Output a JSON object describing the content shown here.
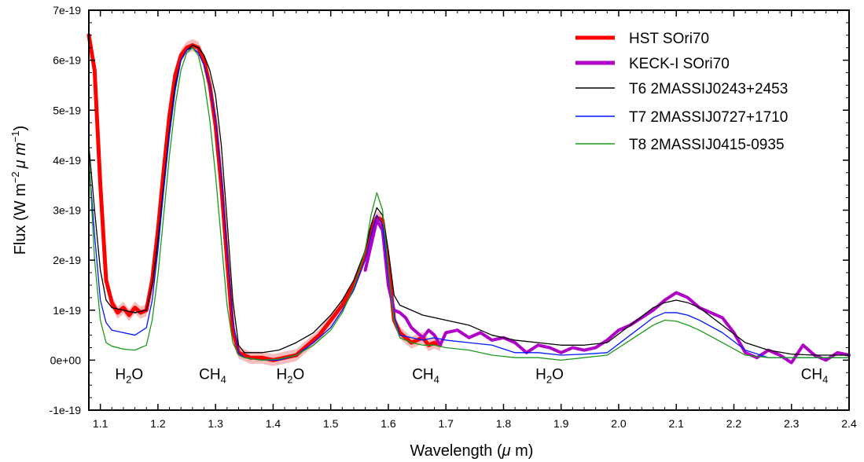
{
  "chart_data": {
    "type": "line",
    "title": "",
    "xlabel_main": "Wavelength (",
    "xlabel_mu": "μ",
    "xlabel_tail": " m)",
    "ylabel_main": "Flux (W m",
    "ylabel_exp1": "−2",
    "ylabel_mid": "μ m",
    "ylabel_exp2": "−1",
    "ylabel_tail": ")",
    "xlim": [
      1.08,
      2.4
    ],
    "ylim": [
      -1e-19,
      7e-19
    ],
    "x_ticks": [
      1.1,
      1.2,
      1.3,
      1.4,
      1.5,
      1.6,
      1.7,
      1.8,
      1.9,
      2.0,
      2.1,
      2.2,
      2.3,
      2.4
    ],
    "x_tick_labels": [
      "1.1",
      "1.2",
      "1.3",
      "1.4",
      "1.5",
      "1.6",
      "1.7",
      "1.8",
      "1.9",
      "2.0",
      "2.1",
      "2.2",
      "2.3",
      "2.4"
    ],
    "y_ticks": [
      -1e-19,
      0,
      1e-19,
      2e-19,
      3e-19,
      4e-19,
      5e-19,
      6e-19,
      7e-19
    ],
    "y_tick_labels": [
      "-1e-19",
      "0e+00",
      "1e-19",
      "2e-19",
      "3e-19",
      "4e-19",
      "5e-19",
      "6e-19",
      "7e-19"
    ],
    "grid": false,
    "legend_position": "top-right",
    "annotations": [
      {
        "main": "H",
        "sub": "2",
        "tail": "O",
        "x": 1.15,
        "y": -2.7e-20
      },
      {
        "main": "CH",
        "sub": "4",
        "tail": "",
        "x": 1.295,
        "y": -2.7e-20
      },
      {
        "main": "H",
        "sub": "2",
        "tail": "O",
        "x": 1.43,
        "y": -2.7e-20
      },
      {
        "main": "CH",
        "sub": "4",
        "tail": "",
        "x": 1.665,
        "y": -2.7e-20
      },
      {
        "main": "H",
        "sub": "2",
        "tail": "O",
        "x": 1.88,
        "y": -2.7e-20
      },
      {
        "main": "CH",
        "sub": "4",
        "tail": "",
        "x": 2.34,
        "y": -2.7e-20
      }
    ],
    "series": [
      {
        "name": "HST SOri70",
        "color": "#ff0000",
        "band_color": "#f4a6a6",
        "width": 5,
        "error": 1.2e-20,
        "x": [
          1.08,
          1.09,
          1.1,
          1.11,
          1.12,
          1.13,
          1.14,
          1.15,
          1.16,
          1.17,
          1.18,
          1.19,
          1.2,
          1.21,
          1.22,
          1.23,
          1.24,
          1.25,
          1.26,
          1.27,
          1.28,
          1.29,
          1.3,
          1.31,
          1.32,
          1.33,
          1.34,
          1.35,
          1.36,
          1.38,
          1.4,
          1.42,
          1.44,
          1.46,
          1.48,
          1.5,
          1.52,
          1.54,
          1.56,
          1.57,
          1.58,
          1.59,
          1.6,
          1.61,
          1.62,
          1.63,
          1.64,
          1.65,
          1.66,
          1.67,
          1.68,
          1.69
        ],
        "y": [
          6.5e-19,
          5.8e-19,
          3.5e-19,
          1.6e-19,
          1.15e-19,
          9.5e-20,
          1.05e-19,
          9e-20,
          1.05e-19,
          9.5e-20,
          1e-19,
          1.6e-19,
          2.6e-19,
          3.8e-19,
          4.9e-19,
          5.7e-19,
          6.1e-19,
          6.25e-19,
          6.3e-19,
          6.25e-19,
          6e-19,
          5.5e-19,
          4.7e-19,
          3.5e-19,
          2e-19,
          6e-20,
          1.5e-20,
          1e-20,
          5e-21,
          5e-21,
          0.0,
          5e-21,
          1e-20,
          3e-20,
          5e-20,
          8e-20,
          1.1e-19,
          1.5e-19,
          2.1e-19,
          2.6e-19,
          2.85e-19,
          2.8e-19,
          1.9e-19,
          8e-20,
          5.5e-20,
          4.5e-20,
          3.5e-20,
          4e-20,
          4.5e-20,
          3e-20,
          3.5e-20,
          3e-20
        ]
      },
      {
        "name": "KECK-I SOri70",
        "color": "#b000c8",
        "width": 4,
        "x": [
          1.56,
          1.57,
          1.58,
          1.59,
          1.6,
          1.61,
          1.62,
          1.63,
          1.64,
          1.65,
          1.66,
          1.67,
          1.68,
          1.69,
          1.7,
          1.72,
          1.74,
          1.76,
          1.78,
          1.8,
          1.82,
          1.84,
          1.86,
          1.88,
          1.9,
          1.92,
          1.94,
          1.96,
          1.98,
          2.0,
          2.02,
          2.04,
          2.06,
          2.08,
          2.1,
          2.12,
          2.14,
          2.16,
          2.18,
          2.2,
          2.22,
          2.24,
          2.26,
          2.28,
          2.3,
          2.32,
          2.34,
          2.36,
          2.38,
          2.4
        ],
        "y": [
          1.8e-19,
          2.3e-19,
          2.8e-19,
          2.6e-19,
          1.5e-19,
          1e-19,
          9.5e-20,
          8.5e-20,
          6.5e-20,
          5.5e-20,
          4.5e-20,
          6e-20,
          5e-20,
          3e-20,
          5.5e-20,
          6e-20,
          4.5e-20,
          5.5e-20,
          4e-20,
          4.5e-20,
          3.5e-20,
          1.5e-20,
          3e-20,
          2.5e-20,
          1.5e-20,
          2.5e-20,
          2e-20,
          2.5e-20,
          4e-20,
          6e-20,
          7e-20,
          8.5e-20,
          1e-19,
          1.2e-19,
          1.35e-19,
          1.25e-19,
          1.05e-19,
          9.5e-20,
          8.5e-20,
          5.5e-20,
          1.5e-20,
          5e-21,
          2e-20,
          1e-20,
          -5e-21,
          3e-20,
          1e-20,
          0.0,
          1.5e-20,
          1e-20
        ]
      },
      {
        "name": "T6 2MASSIJ0243+2453",
        "color": "#000000",
        "width": 1.3,
        "x": [
          1.08,
          1.09,
          1.1,
          1.11,
          1.12,
          1.14,
          1.16,
          1.18,
          1.19,
          1.2,
          1.21,
          1.22,
          1.23,
          1.24,
          1.25,
          1.26,
          1.27,
          1.28,
          1.29,
          1.3,
          1.31,
          1.32,
          1.33,
          1.34,
          1.35,
          1.38,
          1.41,
          1.44,
          1.47,
          1.5,
          1.52,
          1.54,
          1.56,
          1.57,
          1.58,
          1.59,
          1.6,
          1.61,
          1.62,
          1.64,
          1.66,
          1.68,
          1.7,
          1.74,
          1.78,
          1.82,
          1.86,
          1.9,
          1.94,
          1.98,
          2.02,
          2.06,
          2.08,
          2.1,
          2.12,
          2.14,
          2.18,
          2.22,
          2.26,
          2.3,
          2.34,
          2.4
        ],
        "y": [
          4.3e-19,
          3e-19,
          1.8e-19,
          1.2e-19,
          1.05e-19,
          1e-19,
          9.5e-20,
          1e-19,
          1.5e-19,
          2.4e-19,
          3.5e-19,
          4.6e-19,
          5.5e-19,
          6e-19,
          6.2e-19,
          6.3e-19,
          6.25e-19,
          6.1e-19,
          5.8e-19,
          5.3e-19,
          4.3e-19,
          2.8e-19,
          1.2e-19,
          3e-20,
          1.5e-20,
          1.5e-20,
          2e-20,
          3.5e-20,
          5.5e-20,
          9e-20,
          1.2e-19,
          1.6e-19,
          2.2e-19,
          2.7e-19,
          3.05e-19,
          2.9e-19,
          2.2e-19,
          1.3e-19,
          1.1e-19,
          1e-19,
          9e-20,
          8.5e-20,
          8e-20,
          7e-20,
          5e-20,
          4e-20,
          3.5e-20,
          3e-20,
          3e-20,
          3.5e-20,
          7e-20,
          1.05e-19,
          1.15e-19,
          1.2e-19,
          1.15e-19,
          1.05e-19,
          7e-20,
          3.5e-20,
          2e-20,
          1.2e-20,
          1e-20,
          1e-20
        ]
      },
      {
        "name": "T7 2MASSIJ0727+1710",
        "color": "#0018ff",
        "width": 1.3,
        "x": [
          1.08,
          1.09,
          1.1,
          1.11,
          1.12,
          1.14,
          1.16,
          1.18,
          1.19,
          1.2,
          1.21,
          1.22,
          1.23,
          1.24,
          1.25,
          1.26,
          1.27,
          1.28,
          1.29,
          1.3,
          1.31,
          1.32,
          1.33,
          1.34,
          1.35,
          1.38,
          1.41,
          1.44,
          1.47,
          1.5,
          1.52,
          1.54,
          1.56,
          1.57,
          1.58,
          1.59,
          1.6,
          1.61,
          1.62,
          1.64,
          1.66,
          1.68,
          1.7,
          1.74,
          1.78,
          1.82,
          1.86,
          1.9,
          1.94,
          1.98,
          2.02,
          2.06,
          2.08,
          2.1,
          2.12,
          2.14,
          2.18,
          2.22,
          2.26,
          2.3,
          2.34,
          2.4
        ],
        "y": [
          4e-19,
          2.5e-19,
          1.2e-19,
          7.5e-20,
          6e-20,
          5.5e-20,
          5e-20,
          6.5e-20,
          1.2e-19,
          2.2e-19,
          3.4e-19,
          4.5e-19,
          5.4e-19,
          6e-19,
          6.2e-19,
          6.25e-19,
          6.15e-19,
          5.9e-19,
          5.5e-19,
          4.8e-19,
          3.7e-19,
          2.2e-19,
          8e-20,
          1.5e-20,
          5e-21,
          0.0,
          0.0,
          1e-20,
          3.5e-20,
          6.5e-20,
          1e-19,
          1.4e-19,
          2e-19,
          2.5e-19,
          2.9e-19,
          2.7e-19,
          1.7e-19,
          9e-20,
          5e-20,
          4.5e-20,
          4e-20,
          4.5e-20,
          4e-20,
          3.5e-20,
          3e-20,
          1.5e-20,
          1.5e-20,
          1e-20,
          1.2e-20,
          1.5e-20,
          5e-20,
          8.5e-20,
          9.5e-20,
          9.5e-20,
          9e-20,
          8e-20,
          5.5e-20,
          2e-20,
          5e-21,
          5e-21,
          5e-21,
          5e-21
        ]
      },
      {
        "name": "T8 2MASSIJ0415-0935",
        "color": "#1a9a1a",
        "width": 1.3,
        "x": [
          1.08,
          1.09,
          1.1,
          1.11,
          1.12,
          1.14,
          1.16,
          1.18,
          1.19,
          1.2,
          1.21,
          1.22,
          1.23,
          1.24,
          1.25,
          1.26,
          1.27,
          1.28,
          1.29,
          1.3,
          1.31,
          1.32,
          1.33,
          1.34,
          1.35,
          1.38,
          1.41,
          1.44,
          1.47,
          1.5,
          1.52,
          1.54,
          1.56,
          1.57,
          1.58,
          1.59,
          1.6,
          1.61,
          1.62,
          1.64,
          1.66,
          1.68,
          1.7,
          1.74,
          1.78,
          1.82,
          1.86,
          1.9,
          1.94,
          1.98,
          2.02,
          2.06,
          2.08,
          2.1,
          2.12,
          2.14,
          2.18,
          2.22,
          2.26,
          2.3,
          2.34,
          2.4
        ],
        "y": [
          4.1e-19,
          2e-19,
          8e-20,
          3.5e-20,
          2.8e-20,
          2.2e-20,
          2e-20,
          3e-20,
          8e-20,
          1.7e-19,
          2.9e-19,
          4.1e-19,
          5.1e-19,
          5.8e-19,
          6.15e-19,
          6.25e-19,
          6.1e-19,
          5.6e-19,
          4.8e-19,
          3.7e-19,
          2.4e-19,
          1.1e-19,
          3.5e-20,
          1e-20,
          5e-21,
          0.0,
          2e-21,
          1e-20,
          3e-20,
          6e-20,
          9.5e-20,
          1.45e-19,
          2.2e-19,
          2.9e-19,
          3.35e-19,
          3e-19,
          1.8e-19,
          8e-20,
          4.5e-20,
          3.5e-20,
          3e-20,
          3e-20,
          2.5e-20,
          2e-20,
          1e-20,
          5e-21,
          5e-21,
          0.0,
          5e-21,
          1e-20,
          4e-20,
          7e-20,
          8e-20,
          7.8e-20,
          7e-20,
          6e-20,
          3.5e-20,
          1e-20,
          5e-21,
          5e-21,
          5e-21,
          5e-21
        ]
      }
    ]
  }
}
